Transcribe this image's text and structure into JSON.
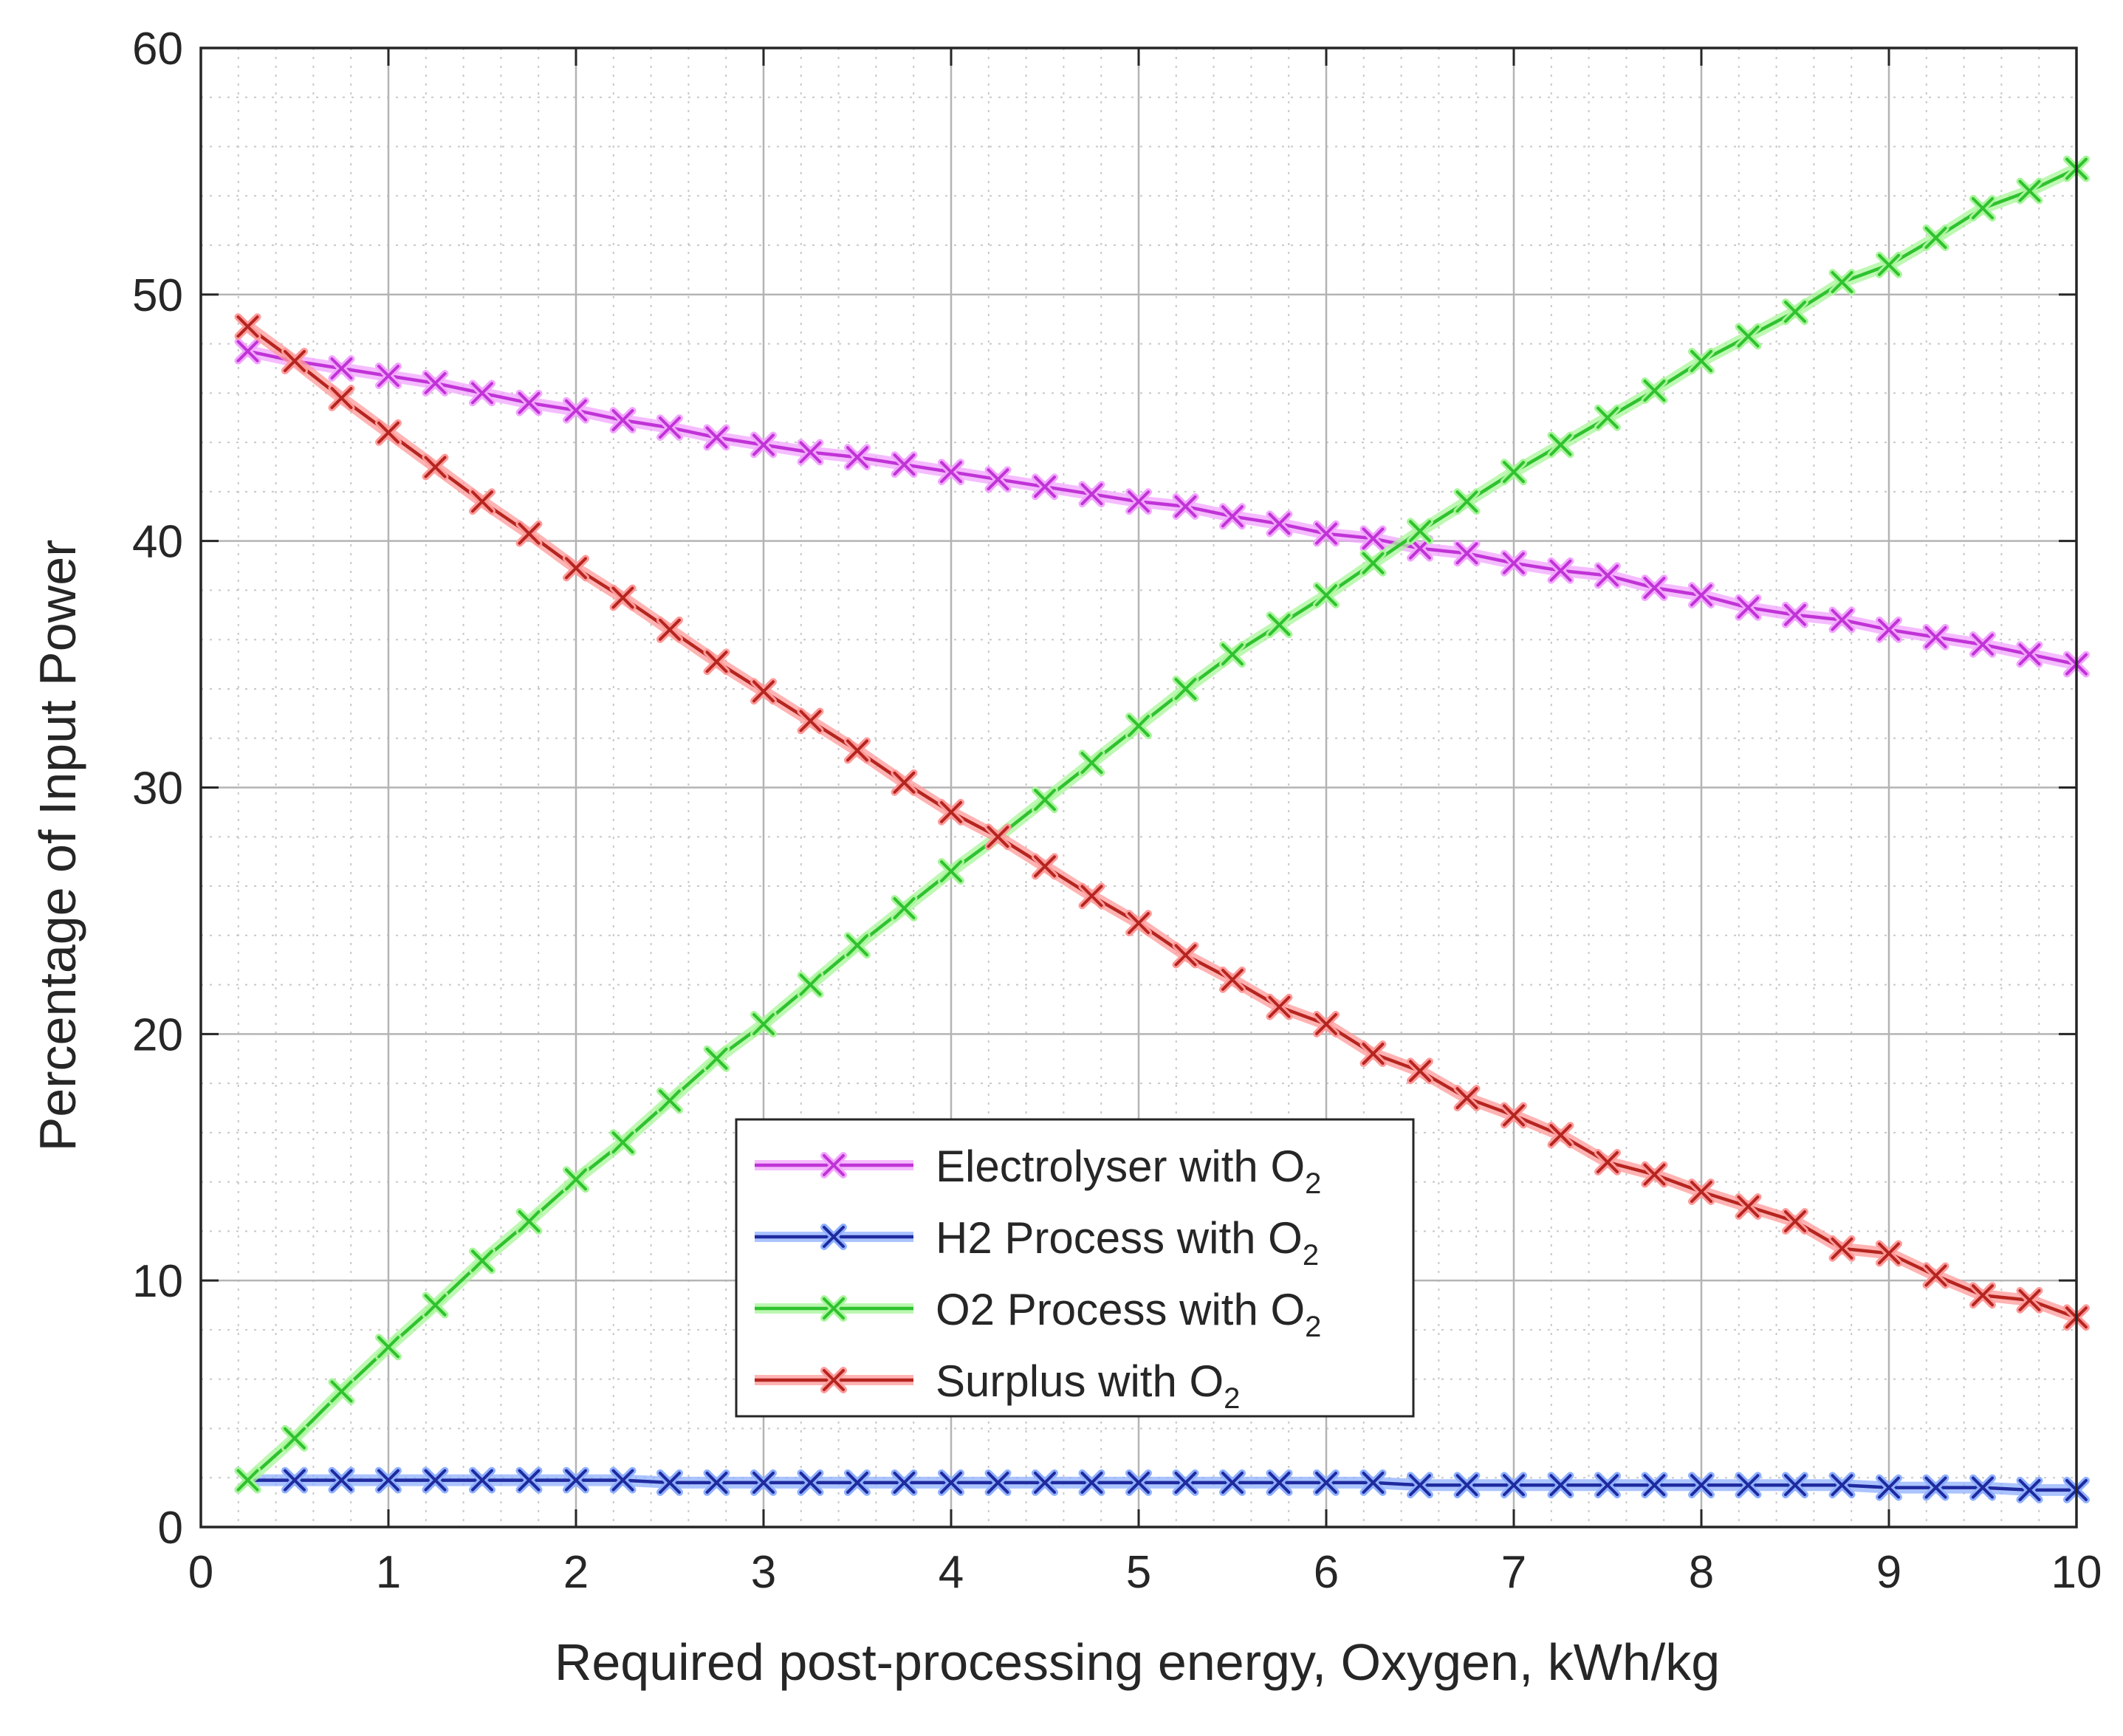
{
  "chart_data": {
    "type": "line",
    "title": "",
    "xlabel": "Required post-processing energy, Oxygen, kWh/kg",
    "ylabel": "Percentage of Input Power",
    "xlim": [
      0,
      10
    ],
    "ylim": [
      0,
      60
    ],
    "xticks": [
      0,
      1,
      2,
      3,
      4,
      5,
      6,
      7,
      8,
      9,
      10
    ],
    "yticks": [
      0,
      10,
      20,
      30,
      40,
      50,
      60
    ],
    "grid": true,
    "minor_grid": true,
    "legend_position": "lower-center",
    "x": [
      0.25,
      0.5,
      0.75,
      1.0,
      1.25,
      1.5,
      1.75,
      2.0,
      2.25,
      2.5,
      2.75,
      3.0,
      3.25,
      3.5,
      3.75,
      4.0,
      4.25,
      4.5,
      4.75,
      5.0,
      5.25,
      5.5,
      5.75,
      6.0,
      6.25,
      6.5,
      6.75,
      7.0,
      7.25,
      7.5,
      7.75,
      8.0,
      8.25,
      8.5,
      8.75,
      9.0,
      9.25,
      9.5,
      9.75,
      10.0
    ],
    "series": [
      {
        "name": "Electrolyser with O",
        "subscript": "2",
        "color": "#c033d6",
        "glow": "#f2a6ff",
        "values": [
          47.7,
          47.3,
          47.0,
          46.7,
          46.4,
          46.0,
          45.6,
          45.3,
          44.9,
          44.6,
          44.2,
          43.9,
          43.6,
          43.4,
          43.1,
          42.8,
          42.5,
          42.2,
          41.9,
          41.6,
          41.4,
          41.0,
          40.7,
          40.3,
          40.1,
          39.7,
          39.5,
          39.1,
          38.8,
          38.6,
          38.1,
          37.8,
          37.3,
          37.0,
          36.8,
          36.4,
          36.1,
          35.8,
          35.4,
          35.0
        ]
      },
      {
        "name": "H2 Process with O",
        "subscript": "2",
        "color": "#1f2a9e",
        "glow": "#8fb0ff",
        "values": [
          1.9,
          1.9,
          1.9,
          1.9,
          1.9,
          1.9,
          1.9,
          1.9,
          1.9,
          1.8,
          1.8,
          1.8,
          1.8,
          1.8,
          1.8,
          1.8,
          1.8,
          1.8,
          1.8,
          1.8,
          1.8,
          1.8,
          1.8,
          1.8,
          1.8,
          1.7,
          1.7,
          1.7,
          1.7,
          1.7,
          1.7,
          1.7,
          1.7,
          1.7,
          1.7,
          1.6,
          1.6,
          1.6,
          1.5,
          1.5
        ]
      },
      {
        "name": "O2 Process with O",
        "subscript": "2",
        "color": "#2fc22f",
        "glow": "#a8f59a",
        "values": [
          1.9,
          3.6,
          5.5,
          7.3,
          9.0,
          10.8,
          12.4,
          14.1,
          15.6,
          17.3,
          19.0,
          20.4,
          22.0,
          23.6,
          25.1,
          26.6,
          28.0,
          29.5,
          31.0,
          32.5,
          34.0,
          35.4,
          36.6,
          37.8,
          39.1,
          40.4,
          41.6,
          42.8,
          43.9,
          45.0,
          46.1,
          47.3,
          48.3,
          49.3,
          50.5,
          51.2,
          52.3,
          53.5,
          54.2,
          55.1
        ]
      },
      {
        "name": "Surplus with O",
        "subscript": "2",
        "color": "#b5251f",
        "glow": "#ff9a9a",
        "values": [
          48.7,
          47.3,
          45.8,
          44.4,
          43.0,
          41.6,
          40.3,
          38.9,
          37.7,
          36.4,
          35.1,
          33.9,
          32.7,
          31.5,
          30.2,
          29.0,
          28.0,
          26.8,
          25.6,
          24.5,
          23.2,
          22.2,
          21.1,
          20.4,
          19.2,
          18.5,
          17.4,
          16.7,
          15.9,
          14.8,
          14.3,
          13.6,
          13.0,
          12.4,
          11.3,
          11.1,
          10.2,
          9.4,
          9.2,
          8.5
        ]
      }
    ]
  }
}
